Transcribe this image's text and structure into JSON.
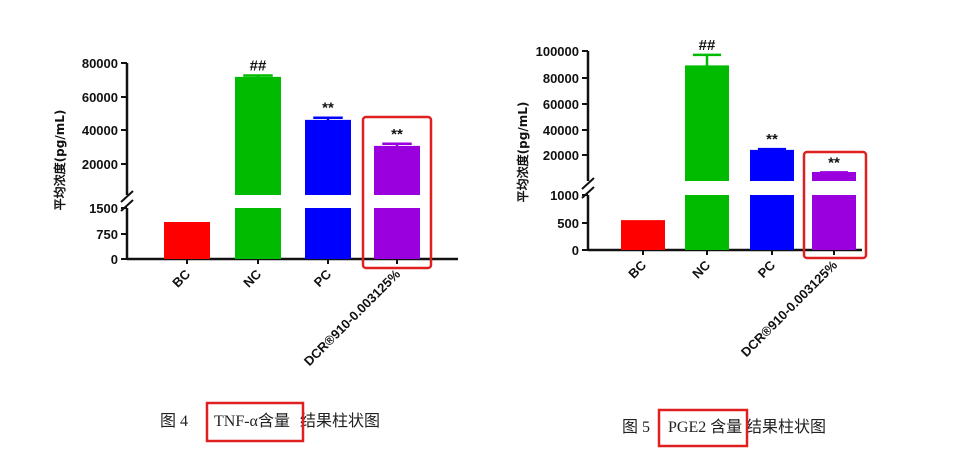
{
  "colors": {
    "bc": "#ff0000",
    "nc": "#00bb00",
    "pc": "#0000ff",
    "dcr": "#9900dd",
    "highlight": "#e02020"
  },
  "chart_data": [
    {
      "type": "bar",
      "caption_prefix": "图 4",
      "caption_highlight": "TNF-α含量",
      "caption_suffix": "结果柱状图",
      "ylabel": "平均浓度(pg/mL)",
      "categories": [
        "BC",
        "NC",
        "PC",
        "DCR®910-0.003125%"
      ],
      "values": [
        1050,
        71000,
        45500,
        30000
      ],
      "errors": [
        0,
        1600,
        2000,
        2000
      ],
      "annotations": [
        "",
        "##",
        "**",
        "**"
      ],
      "axis_break": true,
      "lower_range": [
        0,
        1500
      ],
      "upper_range": [
        0,
        80000
      ],
      "lower_ticks": [
        "0",
        "750",
        "1500"
      ],
      "upper_ticks": [
        "20000",
        "40000",
        "60000",
        "80000"
      ],
      "highlight_category": "DCR®910-0.003125%"
    },
    {
      "type": "bar",
      "caption_prefix": "图 5",
      "caption_highlight": "PGE2 含量",
      "caption_suffix": "结果柱状图",
      "ylabel": "平均浓度(pg/mL)",
      "categories": [
        "BC",
        "NC",
        "PC",
        "DCR®910-0.003125%"
      ],
      "values": [
        520,
        88000,
        23000,
        6000
      ],
      "errors": [
        0,
        9000,
        1500,
        600
      ],
      "annotations": [
        "",
        "##",
        "**",
        "**"
      ],
      "axis_break": true,
      "lower_range": [
        0,
        1000
      ],
      "upper_range": [
        0,
        100000
      ],
      "lower_ticks": [
        "0",
        "500",
        "1000"
      ],
      "upper_ticks": [
        "20000",
        "40000",
        "60000",
        "80000",
        "100000"
      ],
      "highlight_category": "DCR®910-0.003125%"
    }
  ]
}
